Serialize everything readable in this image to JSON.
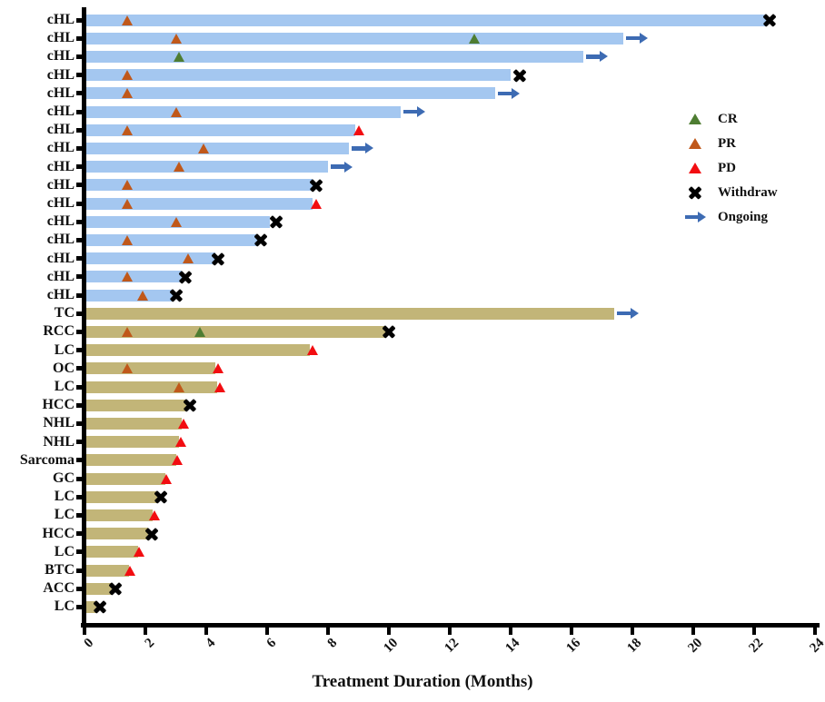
{
  "chart_data": {
    "type": "bar",
    "variant": "swimmer-plot",
    "title": "",
    "xlabel": "Treatment Duration (Months)",
    "ylabel": "",
    "xlim": [
      0,
      24
    ],
    "x_ticks": [
      0,
      2,
      4,
      6,
      8,
      10,
      12,
      14,
      16,
      18,
      20,
      22,
      24
    ],
    "grid": false,
    "legend_position": "right-upper",
    "bar_colors": {
      "cHL": "#A4C7F0",
      "other": "#C2B578"
    },
    "marker_colors": {
      "CR": "#4E7D32",
      "PR": "#C0581A",
      "PD": "#F20D11",
      "Withdraw": "#000000",
      "Ongoing": "#3D6BB3"
    },
    "legend": [
      {
        "label": "CR",
        "marker": "triangle",
        "color": "#4E7D32"
      },
      {
        "label": "PR",
        "marker": "triangle",
        "color": "#C0581A"
      },
      {
        "label": "PD",
        "marker": "triangle",
        "color": "#F20D11"
      },
      {
        "label": "Withdraw",
        "marker": "x",
        "color": "#000000"
      },
      {
        "label": "Ongoing",
        "marker": "arrow",
        "color": "#3D6BB3"
      }
    ],
    "patients": [
      {
        "label": "cHL",
        "group": "cHL",
        "duration": 22.4,
        "markers": [
          {
            "type": "PR",
            "x": 1.4
          },
          {
            "type": "Withdraw",
            "x": 22.5
          }
        ]
      },
      {
        "label": "cHL",
        "group": "cHL",
        "duration": 17.7,
        "markers": [
          {
            "type": "PR",
            "x": 3.0
          },
          {
            "type": "CR",
            "x": 12.8
          },
          {
            "type": "Ongoing"
          }
        ]
      },
      {
        "label": "cHL",
        "group": "cHL",
        "duration": 16.4,
        "markers": [
          {
            "type": "CR",
            "x": 3.1
          },
          {
            "type": "Ongoing"
          }
        ]
      },
      {
        "label": "cHL",
        "group": "cHL",
        "duration": 14.0,
        "markers": [
          {
            "type": "PR",
            "x": 1.4
          },
          {
            "type": "Withdraw",
            "x": 14.3
          }
        ]
      },
      {
        "label": "cHL",
        "group": "cHL",
        "duration": 13.5,
        "markers": [
          {
            "type": "PR",
            "x": 1.4
          },
          {
            "type": "Ongoing"
          }
        ]
      },
      {
        "label": "cHL",
        "group": "cHL",
        "duration": 10.4,
        "markers": [
          {
            "type": "PR",
            "x": 3.0
          },
          {
            "type": "Ongoing"
          }
        ]
      },
      {
        "label": "cHL",
        "group": "cHL",
        "duration": 8.9,
        "markers": [
          {
            "type": "PR",
            "x": 1.4
          },
          {
            "type": "PD",
            "x": 9.0
          }
        ]
      },
      {
        "label": "cHL",
        "group": "cHL",
        "duration": 8.7,
        "markers": [
          {
            "type": "PR",
            "x": 3.9
          },
          {
            "type": "Ongoing"
          }
        ]
      },
      {
        "label": "cHL",
        "group": "cHL",
        "duration": 8.0,
        "markers": [
          {
            "type": "PR",
            "x": 3.1
          },
          {
            "type": "Ongoing"
          }
        ]
      },
      {
        "label": "cHL",
        "group": "cHL",
        "duration": 7.5,
        "markers": [
          {
            "type": "PR",
            "x": 1.4
          },
          {
            "type": "Withdraw",
            "x": 7.6
          }
        ]
      },
      {
        "label": "cHL",
        "group": "cHL",
        "duration": 7.5,
        "markers": [
          {
            "type": "PR",
            "x": 1.4
          },
          {
            "type": "PD",
            "x": 7.6
          }
        ]
      },
      {
        "label": "cHL",
        "group": "cHL",
        "duration": 6.1,
        "markers": [
          {
            "type": "PR",
            "x": 3.0
          },
          {
            "type": "Withdraw",
            "x": 6.3
          }
        ]
      },
      {
        "label": "cHL",
        "group": "cHL",
        "duration": 5.7,
        "markers": [
          {
            "type": "PR",
            "x": 1.4
          },
          {
            "type": "Withdraw",
            "x": 5.8
          }
        ]
      },
      {
        "label": "cHL",
        "group": "cHL",
        "duration": 4.3,
        "markers": [
          {
            "type": "PR",
            "x": 3.4
          },
          {
            "type": "Withdraw",
            "x": 4.4
          }
        ]
      },
      {
        "label": "cHL",
        "group": "cHL",
        "duration": 3.2,
        "markers": [
          {
            "type": "PR",
            "x": 1.4
          },
          {
            "type": "Withdraw",
            "x": 3.3
          }
        ]
      },
      {
        "label": "cHL",
        "group": "cHL",
        "duration": 2.9,
        "markers": [
          {
            "type": "PR",
            "x": 1.9
          },
          {
            "type": "Withdraw",
            "x": 3.0
          }
        ]
      },
      {
        "label": "TC",
        "group": "other",
        "duration": 17.4,
        "markers": [
          {
            "type": "Ongoing"
          }
        ]
      },
      {
        "label": "RCC",
        "group": "other",
        "duration": 9.9,
        "markers": [
          {
            "type": "PR",
            "x": 1.4
          },
          {
            "type": "CR",
            "x": 3.8
          },
          {
            "type": "Withdraw",
            "x": 10.0
          }
        ]
      },
      {
        "label": "LC",
        "group": "other",
        "duration": 7.4,
        "markers": [
          {
            "type": "PD",
            "x": 7.5
          }
        ]
      },
      {
        "label": "OC",
        "group": "other",
        "duration": 4.3,
        "markers": [
          {
            "type": "PR",
            "x": 1.4
          },
          {
            "type": "PD",
            "x": 4.4
          }
        ]
      },
      {
        "label": "LC",
        "group": "other",
        "duration": 4.35,
        "markers": [
          {
            "type": "PR",
            "x": 3.1
          },
          {
            "type": "PD",
            "x": 4.45
          }
        ]
      },
      {
        "label": "HCC",
        "group": "other",
        "duration": 3.35,
        "markers": [
          {
            "type": "Withdraw",
            "x": 3.45
          }
        ]
      },
      {
        "label": "NHL",
        "group": "other",
        "duration": 3.2,
        "markers": [
          {
            "type": "PD",
            "x": 3.25
          }
        ]
      },
      {
        "label": "NHL",
        "group": "other",
        "duration": 3.1,
        "markers": [
          {
            "type": "PD",
            "x": 3.15
          }
        ]
      },
      {
        "label": "Sarcoma",
        "group": "other",
        "duration": 3.0,
        "markers": [
          {
            "type": "PD",
            "x": 3.05
          }
        ]
      },
      {
        "label": "GC",
        "group": "other",
        "duration": 2.65,
        "markers": [
          {
            "type": "PD",
            "x": 2.7
          }
        ]
      },
      {
        "label": "LC",
        "group": "other",
        "duration": 2.4,
        "markers": [
          {
            "type": "Withdraw",
            "x": 2.5
          }
        ]
      },
      {
        "label": "LC",
        "group": "other",
        "duration": 2.25,
        "markers": [
          {
            "type": "PD",
            "x": 2.3
          }
        ]
      },
      {
        "label": "HCC",
        "group": "other",
        "duration": 2.1,
        "markers": [
          {
            "type": "Withdraw",
            "x": 2.2
          }
        ]
      },
      {
        "label": "LC",
        "group": "other",
        "duration": 1.75,
        "markers": [
          {
            "type": "PD",
            "x": 1.8
          }
        ]
      },
      {
        "label": "BTC",
        "group": "other",
        "duration": 1.45,
        "markers": [
          {
            "type": "PD",
            "x": 1.5
          }
        ]
      },
      {
        "label": "ACC",
        "group": "other",
        "duration": 0.9,
        "markers": [
          {
            "type": "Withdraw",
            "x": 1.0
          }
        ]
      },
      {
        "label": "LC",
        "group": "other",
        "duration": 0.4,
        "markers": [
          {
            "type": "Withdraw",
            "x": 0.5
          }
        ]
      }
    ]
  }
}
